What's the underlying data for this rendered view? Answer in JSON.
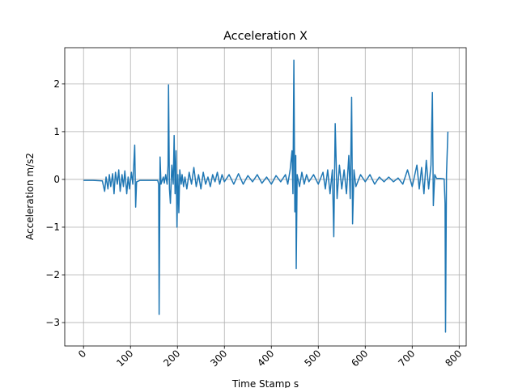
{
  "chart_data": {
    "type": "line",
    "title": "Acceleration X",
    "x_label": "Time Stamp s",
    "y_label": "Acceleration m/s2",
    "x": [
      0,
      20,
      40,
      45,
      48,
      52,
      55,
      58,
      62,
      65,
      68,
      72,
      75,
      78,
      82,
      85,
      88,
      92,
      95,
      98,
      102,
      105,
      107,
      109,
      111,
      113,
      120,
      140,
      158,
      160,
      161,
      163,
      165,
      170,
      172,
      175,
      178,
      180,
      181,
      183,
      185,
      188,
      191,
      193,
      195,
      197,
      199,
      201,
      203,
      205,
      208,
      210,
      213,
      216,
      220,
      225,
      230,
      235,
      240,
      245,
      250,
      255,
      260,
      265,
      270,
      275,
      280,
      285,
      290,
      295,
      300,
      310,
      320,
      330,
      340,
      350,
      360,
      370,
      380,
      390,
      400,
      410,
      420,
      430,
      435,
      440,
      444,
      446,
      448,
      450,
      452,
      453,
      455,
      460,
      465,
      470,
      475,
      480,
      490,
      500,
      510,
      515,
      520,
      525,
      530,
      533,
      536,
      540,
      545,
      550,
      555,
      560,
      565,
      568,
      571,
      573,
      576,
      580,
      590,
      600,
      610,
      620,
      630,
      640,
      650,
      660,
      670,
      680,
      690,
      700,
      710,
      715,
      720,
      725,
      730,
      735,
      740,
      743,
      745,
      748,
      752,
      760,
      768,
      770,
      771,
      773,
      776
    ],
    "series": [
      {
        "name": "Acceleration X",
        "color": "#1f77b4",
        "values": [
          -0.02,
          -0.02,
          -0.03,
          -0.25,
          0.05,
          -0.2,
          0.1,
          -0.15,
          0.12,
          -0.3,
          0.15,
          -0.1,
          0.2,
          -0.25,
          0.1,
          -0.15,
          0.18,
          -0.3,
          0.05,
          -0.2,
          0.15,
          -0.1,
          0.3,
          0.72,
          -0.58,
          -0.05,
          -0.02,
          -0.02,
          -0.02,
          -0.1,
          -2.83,
          0.47,
          -0.1,
          0.05,
          -0.08,
          0.1,
          -0.1,
          0.3,
          1.98,
          -0.2,
          -0.5,
          0.3,
          -0.1,
          0.92,
          -0.3,
          0.6,
          -1.0,
          0.1,
          -0.7,
          0.2,
          -0.1,
          0.1,
          -0.15,
          0.05,
          -0.2,
          0.15,
          -0.1,
          0.25,
          -0.15,
          0.1,
          -0.2,
          0.15,
          -0.1,
          0.05,
          -0.15,
          0.1,
          -0.05,
          0.15,
          -0.1,
          0.1,
          -0.05,
          0.1,
          -0.1,
          0.12,
          -0.1,
          0.08,
          -0.05,
          0.1,
          -0.08,
          0.05,
          -0.1,
          0.08,
          -0.05,
          0.1,
          -0.1,
          0.2,
          0.6,
          -0.3,
          2.5,
          -0.68,
          0.5,
          -1.87,
          0.1,
          -0.15,
          0.15,
          -0.1,
          0.1,
          -0.05,
          0.1,
          -0.1,
          0.15,
          -0.2,
          0.2,
          -0.3,
          0.2,
          -1.2,
          1.17,
          -0.4,
          0.3,
          -0.2,
          0.2,
          -0.3,
          0.5,
          -0.4,
          1.72,
          -0.93,
          0.2,
          -0.15,
          0.1,
          -0.05,
          0.1,
          -0.1,
          0.05,
          -0.05,
          0.05,
          -0.05,
          0.03,
          -0.1,
          0.2,
          -0.15,
          0.3,
          -0.2,
          0.25,
          -0.3,
          0.4,
          -0.2,
          0.3,
          1.82,
          -0.55,
          0.1,
          0.02,
          0.02,
          0.01,
          -0.5,
          -3.2,
          0.1,
          1.0
        ]
      }
    ],
    "xlim": [
      -40,
      815
    ],
    "ylim": [
      -3.49,
      2.76
    ],
    "xticks": [
      0,
      100,
      200,
      300,
      400,
      500,
      600,
      700,
      800
    ],
    "yticks": [
      {
        "value": -3,
        "label": "−3"
      },
      {
        "value": -2,
        "label": "−2"
      },
      {
        "value": -1,
        "label": "−1"
      },
      0,
      1,
      2
    ],
    "grid": true
  }
}
